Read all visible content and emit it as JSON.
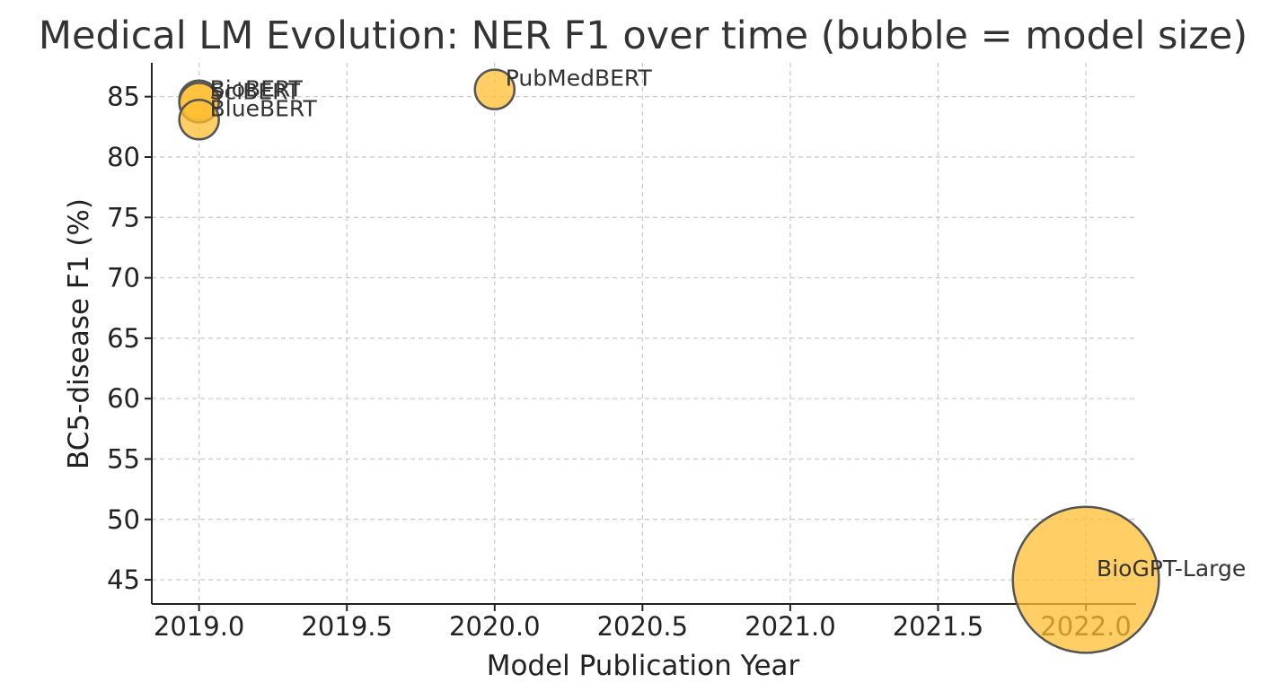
{
  "chart_data": {
    "type": "scatter",
    "title": "Medical LM Evolution: NER F1 over time (bubble = model size)",
    "xlabel": "Model Publication Year",
    "ylabel": "BC5-disease F1 (%)",
    "xlim": [
      2018.84,
      2022.17
    ],
    "ylim": [
      43,
      87.8
    ],
    "xticks": [
      "2019.0",
      "2019.5",
      "2020.0",
      "2020.5",
      "2021.0",
      "2021.5",
      "2022.0"
    ],
    "yticks": [
      "45",
      "50",
      "55",
      "60",
      "65",
      "70",
      "75",
      "80",
      "85"
    ],
    "grid": true,
    "bubble_color": "#ffbf33",
    "edge_color": "#555555",
    "points": [
      {
        "label": "BioBERT",
        "x": 2019.0,
        "y": 84.7,
        "size": 110
      },
      {
        "label": "SciBERT",
        "x": 2019.0,
        "y": 84.5,
        "size": 110
      },
      {
        "label": "BlueBERT",
        "x": 2019.0,
        "y": 83.1,
        "size": 110
      },
      {
        "label": "PubMedBERT",
        "x": 2020.0,
        "y": 85.6,
        "size": 110
      },
      {
        "label": "BioGPT-Large",
        "x": 2022.0,
        "y": 45.0,
        "size": 1500
      }
    ]
  }
}
